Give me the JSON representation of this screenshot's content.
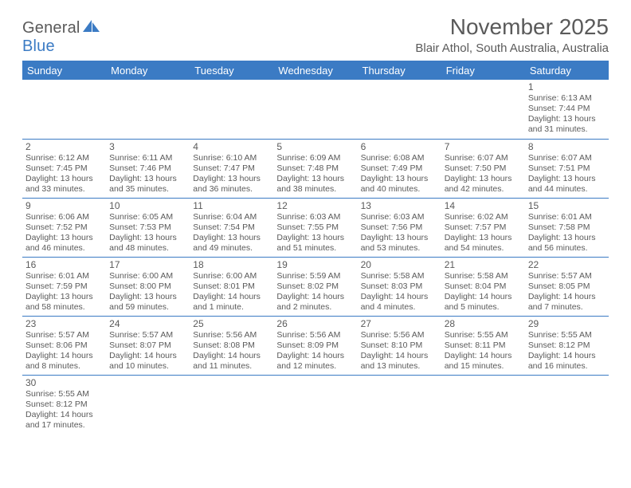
{
  "brand": {
    "part1": "General",
    "part2": "Blue"
  },
  "title": "November 2025",
  "location": "Blair Athol, South Australia, Australia",
  "colors": {
    "header_bg": "#3b7bc4",
    "header_text": "#ffffff",
    "rule": "#3b7bc4",
    "body_text": "#5a5a5a",
    "background": "#ffffff"
  },
  "typography": {
    "title_fontsize": 28,
    "location_fontsize": 15,
    "dayheader_fontsize": 13,
    "daynum_fontsize": 12,
    "cell_fontsize": 10.5
  },
  "day_headers": [
    "Sunday",
    "Monday",
    "Tuesday",
    "Wednesday",
    "Thursday",
    "Friday",
    "Saturday"
  ],
  "weeks": [
    [
      null,
      null,
      null,
      null,
      null,
      null,
      {
        "n": "1",
        "sunrise": "Sunrise: 6:13 AM",
        "sunset": "Sunset: 7:44 PM",
        "day1": "Daylight: 13 hours",
        "day2": "and 31 minutes."
      }
    ],
    [
      {
        "n": "2",
        "sunrise": "Sunrise: 6:12 AM",
        "sunset": "Sunset: 7:45 PM",
        "day1": "Daylight: 13 hours",
        "day2": "and 33 minutes."
      },
      {
        "n": "3",
        "sunrise": "Sunrise: 6:11 AM",
        "sunset": "Sunset: 7:46 PM",
        "day1": "Daylight: 13 hours",
        "day2": "and 35 minutes."
      },
      {
        "n": "4",
        "sunrise": "Sunrise: 6:10 AM",
        "sunset": "Sunset: 7:47 PM",
        "day1": "Daylight: 13 hours",
        "day2": "and 36 minutes."
      },
      {
        "n": "5",
        "sunrise": "Sunrise: 6:09 AM",
        "sunset": "Sunset: 7:48 PM",
        "day1": "Daylight: 13 hours",
        "day2": "and 38 minutes."
      },
      {
        "n": "6",
        "sunrise": "Sunrise: 6:08 AM",
        "sunset": "Sunset: 7:49 PM",
        "day1": "Daylight: 13 hours",
        "day2": "and 40 minutes."
      },
      {
        "n": "7",
        "sunrise": "Sunrise: 6:07 AM",
        "sunset": "Sunset: 7:50 PM",
        "day1": "Daylight: 13 hours",
        "day2": "and 42 minutes."
      },
      {
        "n": "8",
        "sunrise": "Sunrise: 6:07 AM",
        "sunset": "Sunset: 7:51 PM",
        "day1": "Daylight: 13 hours",
        "day2": "and 44 minutes."
      }
    ],
    [
      {
        "n": "9",
        "sunrise": "Sunrise: 6:06 AM",
        "sunset": "Sunset: 7:52 PM",
        "day1": "Daylight: 13 hours",
        "day2": "and 46 minutes."
      },
      {
        "n": "10",
        "sunrise": "Sunrise: 6:05 AM",
        "sunset": "Sunset: 7:53 PM",
        "day1": "Daylight: 13 hours",
        "day2": "and 48 minutes."
      },
      {
        "n": "11",
        "sunrise": "Sunrise: 6:04 AM",
        "sunset": "Sunset: 7:54 PM",
        "day1": "Daylight: 13 hours",
        "day2": "and 49 minutes."
      },
      {
        "n": "12",
        "sunrise": "Sunrise: 6:03 AM",
        "sunset": "Sunset: 7:55 PM",
        "day1": "Daylight: 13 hours",
        "day2": "and 51 minutes."
      },
      {
        "n": "13",
        "sunrise": "Sunrise: 6:03 AM",
        "sunset": "Sunset: 7:56 PM",
        "day1": "Daylight: 13 hours",
        "day2": "and 53 minutes."
      },
      {
        "n": "14",
        "sunrise": "Sunrise: 6:02 AM",
        "sunset": "Sunset: 7:57 PM",
        "day1": "Daylight: 13 hours",
        "day2": "and 54 minutes."
      },
      {
        "n": "15",
        "sunrise": "Sunrise: 6:01 AM",
        "sunset": "Sunset: 7:58 PM",
        "day1": "Daylight: 13 hours",
        "day2": "and 56 minutes."
      }
    ],
    [
      {
        "n": "16",
        "sunrise": "Sunrise: 6:01 AM",
        "sunset": "Sunset: 7:59 PM",
        "day1": "Daylight: 13 hours",
        "day2": "and 58 minutes."
      },
      {
        "n": "17",
        "sunrise": "Sunrise: 6:00 AM",
        "sunset": "Sunset: 8:00 PM",
        "day1": "Daylight: 13 hours",
        "day2": "and 59 minutes."
      },
      {
        "n": "18",
        "sunrise": "Sunrise: 6:00 AM",
        "sunset": "Sunset: 8:01 PM",
        "day1": "Daylight: 14 hours",
        "day2": "and 1 minute."
      },
      {
        "n": "19",
        "sunrise": "Sunrise: 5:59 AM",
        "sunset": "Sunset: 8:02 PM",
        "day1": "Daylight: 14 hours",
        "day2": "and 2 minutes."
      },
      {
        "n": "20",
        "sunrise": "Sunrise: 5:58 AM",
        "sunset": "Sunset: 8:03 PM",
        "day1": "Daylight: 14 hours",
        "day2": "and 4 minutes."
      },
      {
        "n": "21",
        "sunrise": "Sunrise: 5:58 AM",
        "sunset": "Sunset: 8:04 PM",
        "day1": "Daylight: 14 hours",
        "day2": "and 5 minutes."
      },
      {
        "n": "22",
        "sunrise": "Sunrise: 5:57 AM",
        "sunset": "Sunset: 8:05 PM",
        "day1": "Daylight: 14 hours",
        "day2": "and 7 minutes."
      }
    ],
    [
      {
        "n": "23",
        "sunrise": "Sunrise: 5:57 AM",
        "sunset": "Sunset: 8:06 PM",
        "day1": "Daylight: 14 hours",
        "day2": "and 8 minutes."
      },
      {
        "n": "24",
        "sunrise": "Sunrise: 5:57 AM",
        "sunset": "Sunset: 8:07 PM",
        "day1": "Daylight: 14 hours",
        "day2": "and 10 minutes."
      },
      {
        "n": "25",
        "sunrise": "Sunrise: 5:56 AM",
        "sunset": "Sunset: 8:08 PM",
        "day1": "Daylight: 14 hours",
        "day2": "and 11 minutes."
      },
      {
        "n": "26",
        "sunrise": "Sunrise: 5:56 AM",
        "sunset": "Sunset: 8:09 PM",
        "day1": "Daylight: 14 hours",
        "day2": "and 12 minutes."
      },
      {
        "n": "27",
        "sunrise": "Sunrise: 5:56 AM",
        "sunset": "Sunset: 8:10 PM",
        "day1": "Daylight: 14 hours",
        "day2": "and 13 minutes."
      },
      {
        "n": "28",
        "sunrise": "Sunrise: 5:55 AM",
        "sunset": "Sunset: 8:11 PM",
        "day1": "Daylight: 14 hours",
        "day2": "and 15 minutes."
      },
      {
        "n": "29",
        "sunrise": "Sunrise: 5:55 AM",
        "sunset": "Sunset: 8:12 PM",
        "day1": "Daylight: 14 hours",
        "day2": "and 16 minutes."
      }
    ],
    [
      {
        "n": "30",
        "sunrise": "Sunrise: 5:55 AM",
        "sunset": "Sunset: 8:12 PM",
        "day1": "Daylight: 14 hours",
        "day2": "and 17 minutes."
      },
      null,
      null,
      null,
      null,
      null,
      null
    ]
  ]
}
